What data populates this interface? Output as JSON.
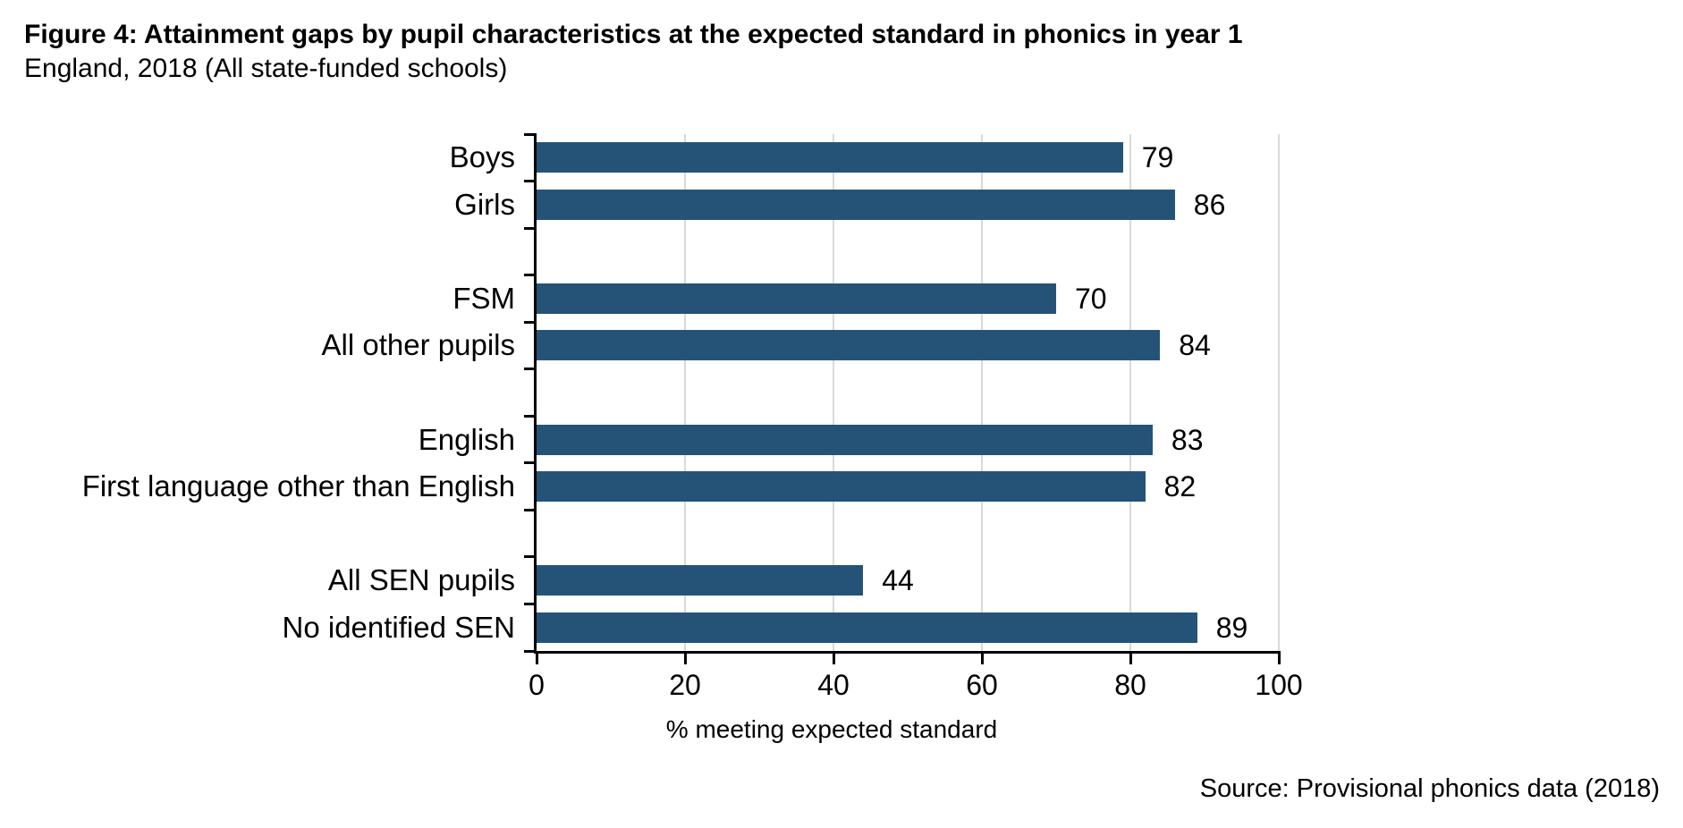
{
  "header": {
    "title": "Figure 4: Attainment gaps by pupil characteristics at the expected standard in phonics in year 1",
    "subtitle": "England, 2018 (All state-funded schools)"
  },
  "chart_data": {
    "type": "bar",
    "orientation": "horizontal",
    "groups": [
      {
        "categories": [
          "Boys",
          "Girls"
        ],
        "values": [
          79,
          86
        ]
      },
      {
        "categories": [
          "FSM",
          "All other pupils"
        ],
        "values": [
          70,
          84
        ]
      },
      {
        "categories": [
          "English",
          "First language other than English"
        ],
        "values": [
          83,
          82
        ]
      },
      {
        "categories": [
          "All SEN pupils",
          "No identified SEN"
        ],
        "values": [
          44,
          89
        ]
      }
    ],
    "xlabel": "% meeting expected standard",
    "xlim": [
      0,
      100
    ],
    "xticks": [
      0,
      20,
      40,
      60,
      80,
      100
    ],
    "grid": "vertical",
    "data_labels": true,
    "legend": "none",
    "bar_color": "#255378",
    "grid_color": "#d9d9d9",
    "axis_color": "#000000"
  },
  "source": "Source: Provisional phonics data (2018)"
}
